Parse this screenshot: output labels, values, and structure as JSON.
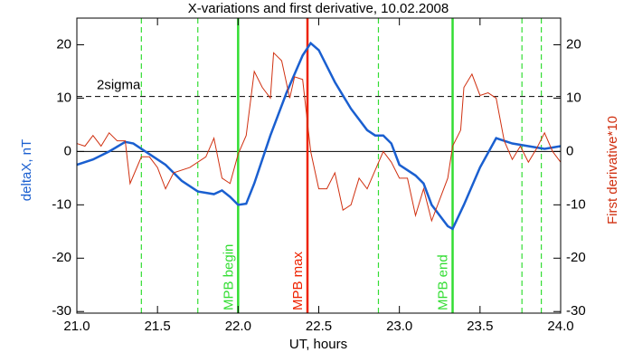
{
  "chart_data": {
    "type": "line",
    "title": "X-variations and first derivative, 10.02.2008",
    "xlabel": "UT, hours",
    "ylabel": "deltaX, nT",
    "y2label": "First derivative*10",
    "xlim": [
      21,
      24
    ],
    "xticks": [
      {
        "value": 21,
        "label": "21.0"
      },
      {
        "value": 21.5,
        "label": "21.5"
      },
      {
        "value": 22,
        "label": "22.0"
      },
      {
        "value": 22.5,
        "label": "22.5"
      },
      {
        "value": 23,
        "label": "23.0"
      },
      {
        "value": 23.5,
        "label": "23.5"
      },
      {
        "value": 24,
        "label": "24.0"
      }
    ],
    "ylim": [
      -30.3,
      25
    ],
    "yticks": [
      -30,
      -20,
      -10,
      0,
      10,
      20
    ],
    "y2lim": [
      -30.3,
      25
    ],
    "y2ticks": [
      -30,
      -20,
      -10,
      0,
      10,
      20
    ],
    "series": [
      {
        "name": "deltaX, nT",
        "color": "#1a5fd0",
        "x": [
          21.0,
          21.1,
          21.2,
          21.3,
          21.35,
          21.45,
          21.55,
          21.65,
          21.75,
          21.85,
          21.9,
          21.95,
          22.0,
          22.05,
          22.1,
          22.2,
          22.3,
          22.4,
          22.45,
          22.5,
          22.6,
          22.7,
          22.8,
          22.85,
          22.9,
          22.95,
          23.0,
          23.1,
          23.15,
          23.2,
          23.3,
          23.33,
          23.4,
          23.5,
          23.6,
          23.7,
          23.8,
          23.9,
          24.0
        ],
        "values": [
          -2.5,
          -1.5,
          0,
          1.8,
          1.5,
          -0.5,
          -2.5,
          -5.5,
          -7.5,
          -8,
          -7.3,
          -8.5,
          -10,
          -9.8,
          -6,
          3,
          11,
          18,
          20.3,
          19,
          13,
          8,
          4,
          3,
          3,
          1.5,
          -2.5,
          -4.5,
          -6,
          -10,
          -14,
          -14.5,
          -10,
          -3,
          2.5,
          1.5,
          1,
          0.5,
          1
        ]
      },
      {
        "name": "First derivative*10",
        "color": "#d03010",
        "axis": "y2",
        "x": [
          21.0,
          21.05,
          21.1,
          21.15,
          21.2,
          21.25,
          21.3,
          21.33,
          21.4,
          21.45,
          21.5,
          21.55,
          21.6,
          21.7,
          21.8,
          21.85,
          21.9,
          21.95,
          22.0,
          22.05,
          22.1,
          22.15,
          22.2,
          22.22,
          22.27,
          22.32,
          22.35,
          22.4,
          22.45,
          22.5,
          22.55,
          22.6,
          22.65,
          22.7,
          22.75,
          22.8,
          22.9,
          22.95,
          23.0,
          23.05,
          23.1,
          23.15,
          23.2,
          23.25,
          23.3,
          23.33,
          23.38,
          23.4,
          23.45,
          23.5,
          23.55,
          23.6,
          23.65,
          23.7,
          23.75,
          23.8,
          23.85,
          23.9,
          23.95,
          24.0
        ],
        "values": [
          1.5,
          1,
          3,
          1,
          3.5,
          2,
          2,
          -6,
          -1,
          -1,
          -3,
          -7,
          -4,
          -3,
          -1,
          2.5,
          -5,
          -6,
          -0.5,
          3,
          15,
          12,
          10,
          18.5,
          17,
          10,
          14,
          13.5,
          0,
          -7,
          -7,
          -4,
          -11,
          -10,
          -5,
          -7,
          0,
          -2,
          -5,
          -5,
          -12,
          -7,
          -13,
          -9,
          -5,
          1,
          4,
          12,
          14.5,
          10.5,
          11,
          10,
          2,
          -1.5,
          1,
          -2,
          0.5,
          3.5,
          0,
          -2
        ]
      }
    ],
    "vlines": [
      {
        "x": 21.4,
        "color": "#33dd33",
        "style": "dashed"
      },
      {
        "x": 21.75,
        "color": "#33dd33",
        "style": "dashed"
      },
      {
        "x": 22.0,
        "color": "#33dd33",
        "style": "solid",
        "label": "MPB begin"
      },
      {
        "x": 22.43,
        "color": "#ee2200",
        "style": "solid",
        "label": "MPB max"
      },
      {
        "x": 22.87,
        "color": "#33dd33",
        "style": "dashed"
      },
      {
        "x": 23.33,
        "color": "#33dd33",
        "style": "solid",
        "label": "MPB end"
      },
      {
        "x": 23.76,
        "color": "#33dd33",
        "style": "dashed"
      },
      {
        "x": 23.88,
        "color": "#33dd33",
        "style": "dashed"
      }
    ],
    "hlines": [
      {
        "value": 10.3,
        "color": "#000000",
        "style": "dashed",
        "label": "2sigma"
      },
      {
        "value": 0,
        "color": "#000000",
        "style": "solid"
      }
    ]
  }
}
